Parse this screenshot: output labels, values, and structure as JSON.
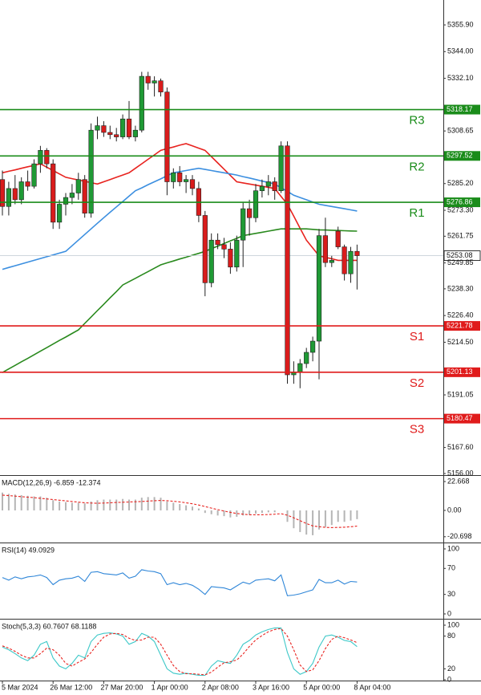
{
  "chart_data": [
    {
      "type": "candlestick",
      "categories": [
        "5 Mar 2024",
        null,
        null,
        null,
        null,
        null,
        null,
        null,
        "26 Mar 12:00",
        null,
        null,
        null,
        null,
        null,
        null,
        null,
        "27 Mar 20:00",
        null,
        null,
        null,
        null,
        null,
        null,
        null,
        "1 Apr 00:00",
        null,
        null,
        null,
        null,
        null,
        null,
        null,
        "2 Apr 08:00",
        null,
        null,
        null,
        null,
        null,
        null,
        null,
        "3 Apr 16:00",
        null,
        null,
        null,
        null,
        null,
        null,
        null,
        "5 Apr 00:00",
        null,
        null,
        null,
        null,
        null,
        null,
        null,
        "8 Apr 04:00"
      ],
      "open": [
        5287,
        5275,
        5283,
        5278,
        5286,
        5284,
        5294,
        5300,
        5294,
        5268,
        5276,
        5279,
        5281,
        5287,
        5272,
        5309,
        5311,
        5308,
        5307,
        5306,
        5314,
        5306,
        5309,
        5333,
        5330,
        5331,
        5326,
        5286,
        5290,
        5286,
        5287,
        5283,
        5271,
        5241,
        5260,
        5258,
        5256,
        5248,
        5260,
        5274,
        5270,
        5282,
        5284,
        5286,
        5282,
        5302,
        5200,
        5201,
        5205,
        5210,
        5215,
        5262,
        5250,
        5264,
        5257,
        5245,
        5255
      ],
      "high": [
        5291,
        5286,
        5289,
        5288,
        5291,
        5296,
        5302,
        5301,
        5296,
        5278,
        5281,
        5285,
        5290,
        5289,
        5312,
        5315,
        5313,
        5311,
        5310,
        5316,
        5322,
        5311,
        5335,
        5335,
        5333,
        5332,
        5328,
        5292,
        5293,
        5289,
        5289,
        5286,
        5273,
        5263,
        5263,
        5261,
        5259,
        5262,
        5277,
        5278,
        5285,
        5287,
        5289,
        5288,
        5304,
        5304,
        5206,
        5207,
        5212,
        5217,
        5265,
        5270,
        5253,
        5266,
        5258,
        5257,
        5258
      ],
      "low": [
        5271,
        5271,
        5276,
        5276,
        5282,
        5283,
        5290,
        5292,
        5265,
        5265,
        5271,
        5276,
        5278,
        5270,
        5270,
        5305,
        5306,
        5305,
        5304,
        5305,
        5305,
        5304,
        5308,
        5327,
        5324,
        5324,
        5280,
        5283,
        5284,
        5281,
        5280,
        5268,
        5235,
        5239,
        5256,
        5252,
        5245,
        5246,
        5248,
        5262,
        5268,
        5279,
        5280,
        5278,
        5281,
        5196,
        5196,
        5194,
        5203,
        5206,
        5198,
        5248,
        5248,
        5256,
        5242,
        5241,
        5238
      ],
      "close": [
        5275,
        5283,
        5278,
        5286,
        5284,
        5294,
        5300,
        5294,
        5268,
        5276,
        5279,
        5281,
        5287,
        5272,
        5309,
        5311,
        5308,
        5307,
        5306,
        5314,
        5306,
        5309,
        5333,
        5330,
        5331,
        5326,
        5286,
        5290,
        5286,
        5287,
        5283,
        5271,
        5241,
        5260,
        5258,
        5256,
        5248,
        5260,
        5274,
        5270,
        5282,
        5284,
        5286,
        5282,
        5302,
        5200,
        5201,
        5205,
        5210,
        5215,
        5262,
        5250,
        5251,
        5257,
        5245,
        5255,
        5253.08
      ],
      "up_color": "#1f9a35",
      "down_color": "#d91c1c",
      "moving_averages": [
        {
          "color": "#e8231f",
          "values": [
            5290,
            5290.7,
            5291.3,
            5292,
            5292.7,
            5293.3,
            5294,
            5292.5,
            5291,
            5289.5,
            5288,
            5287.4,
            5286.8,
            5286.2,
            5285.6,
            5285,
            5286,
            5287,
            5288,
            5289,
            5290,
            5292,
            5294,
            5296,
            5298,
            5300,
            5300.8,
            5301.5,
            5302.3,
            5303,
            5302,
            5301,
            5300,
            5297.2,
            5294.4,
            5291.6,
            5288.8,
            5286,
            5285.5,
            5285,
            5284.5,
            5284,
            5283.5,
            5283,
            5279.5,
            5276,
            5270.7,
            5265.3,
            5260,
            5256.5,
            5253,
            5252.3,
            5251.7,
            5251,
            5251,
            5251,
            5251
          ]
        },
        {
          "color": "#3c8fe0",
          "values": [
            5247,
            5247.8,
            5248.6,
            5249.4,
            5250.2,
            5251,
            5251.8,
            5252.6,
            5253.4,
            5254.2,
            5255,
            5257.5,
            5260,
            5262.5,
            5265,
            5267.5,
            5270,
            5272.4,
            5274.8,
            5277.2,
            5279.6,
            5282,
            5283.3,
            5284.7,
            5286,
            5287.3,
            5288.7,
            5290,
            5290.5,
            5291,
            5291.5,
            5292,
            5291.5,
            5291,
            5290.5,
            5290,
            5289.5,
            5289,
            5288.3,
            5287.7,
            5287,
            5286.3,
            5285.7,
            5285,
            5283.3,
            5281.7,
            5280,
            5279,
            5278,
            5277,
            5276,
            5275.5,
            5275,
            5274.5,
            5274,
            5273.5,
            5273
          ]
        },
        {
          "color": "#2a8a1e",
          "values": [
            5201,
            5202.6,
            5204.2,
            5205.8,
            5207.3,
            5208.9,
            5210.5,
            5212.1,
            5213.7,
            5215.3,
            5216.8,
            5218.4,
            5220,
            5222.9,
            5225.7,
            5228.6,
            5231.4,
            5234.3,
            5237.1,
            5240,
            5241.5,
            5243,
            5244.5,
            5246,
            5247.5,
            5249,
            5249.9,
            5250.7,
            5251.6,
            5252.4,
            5253.3,
            5254.1,
            5255,
            5256.2,
            5257.3,
            5258.5,
            5259.7,
            5260.8,
            5262,
            5262.5,
            5263,
            5263.5,
            5264,
            5264.5,
            5265,
            5265,
            5265,
            5265,
            5265,
            5264.8,
            5264.6,
            5264.5,
            5264.4,
            5264.3,
            5264.2,
            5264.1,
            5264
          ]
        }
      ],
      "levels": [
        {
          "label": "R3",
          "value": 5318.17,
          "color": "#1a8c1a"
        },
        {
          "label": "R2",
          "value": 5297.52,
          "color": "#1a8c1a"
        },
        {
          "label": "R1",
          "value": 5276.86,
          "color": "#1a8c1a"
        },
        {
          "label": "S1",
          "value": 5221.78,
          "color": "#e01b1b"
        },
        {
          "label": "S2",
          "value": 5201.13,
          "color": "#e01b1b"
        },
        {
          "label": "S3",
          "value": 5180.47,
          "color": "#e01b1b"
        }
      ],
      "last_price": 5253.08,
      "ylim": [
        5155.3,
        5367.0
      ],
      "yticks": [
        {
          "value": 5355.9,
          "label": "5355.90"
        },
        {
          "value": 5344,
          "label": "5344.00"
        },
        {
          "value": 5332.1,
          "label": "5332.10"
        },
        5308.65,
        {
          "value": 5285.2,
          "label": "5285.20"
        },
        {
          "value": 5273.3,
          "label": "5273.30"
        },
        5261.75,
        5249.85,
        {
          "value": 5238.3,
          "label": "5238.30"
        },
        {
          "value": 5226.4,
          "label": "5226.40"
        },
        {
          "value": 5214.5,
          "label": "5214.50"
        },
        5191.05,
        {
          "value": 5167.6,
          "label": "5167.60"
        },
        {
          "value": 5156,
          "label": "5156.00"
        }
      ]
    },
    {
      "type": "macd",
      "title": "MACD(12,26,9) -6.859 -12.374",
      "values": [
        14,
        13,
        12.5,
        12,
        11.5,
        11,
        11,
        10,
        8,
        7,
        6.5,
        6,
        6,
        5.5,
        7,
        8,
        8.5,
        8.5,
        8.5,
        9,
        8.5,
        8.5,
        10,
        10.5,
        10.5,
        10,
        7,
        6,
        5,
        4,
        3,
        1.5,
        -2,
        -3,
        -4,
        -4.5,
        -5.5,
        -5,
        -4,
        -3.5,
        -2.5,
        -2,
        -1.5,
        -1.5,
        0,
        -9,
        -14,
        -17,
        -19,
        -19.5,
        -15,
        -13,
        -11.5,
        -9,
        -9,
        -8,
        -6.859
      ],
      "signal": [
        12,
        11.6,
        11.2,
        10.8,
        10.4,
        10,
        9.5,
        9,
        8.5,
        8,
        7.5,
        7,
        6.5,
        6,
        5.8,
        5.6,
        5.8,
        6,
        6.2,
        6.4,
        6.6,
        6.8,
        7,
        7.3,
        7.6,
        7.8,
        7.6,
        7.2,
        6.7,
        6,
        5.2,
        4.2,
        3,
        1.8,
        0.6,
        -0.5,
        -1.5,
        -2.4,
        -3,
        -3.4,
        -3.5,
        -3.4,
        -3.2,
        -3,
        -2.6,
        -3.8,
        -5.8,
        -8.1,
        -10.3,
        -12.2,
        -12.8,
        -13.3,
        -13.5,
        -13.4,
        -13.2,
        -12.8,
        -12.374
      ],
      "color": "#b5b5b5",
      "signal_color": "#e8231f",
      "ylim": [
        -24.6,
        27.1
      ],
      "yticks": [
        22.668,
        {
          "value": 0,
          "label": "0.00"
        },
        -20.698
      ]
    },
    {
      "type": "line",
      "title": "RSI(14) 49.0929",
      "series": [
        {
          "color": "#2f86d8",
          "dashed": false,
          "values": [
            56,
            52,
            57,
            54,
            57,
            58,
            60,
            56,
            45,
            52,
            54,
            55,
            58,
            50,
            64,
            65,
            62,
            61,
            60,
            63,
            55,
            58,
            68,
            66,
            65,
            62,
            45,
            48,
            45,
            47,
            44,
            38,
            30,
            42,
            41,
            40,
            37,
            43,
            49,
            46,
            52,
            53,
            54,
            51,
            60,
            28,
            29,
            31,
            34,
            37,
            53,
            48,
            48,
            52,
            46,
            50,
            49.0929
          ]
        }
      ],
      "ylim": [
        -6.2,
        108.6
      ],
      "yticks": [
        100,
        70,
        30,
        0
      ]
    },
    {
      "type": "line",
      "title": "Stoch(5,3,3) 60.7607 68.1188",
      "series": [
        {
          "color": "#3cc8c8",
          "dashed": false,
          "values": [
            60,
            55,
            48,
            40,
            35,
            45,
            65,
            70,
            40,
            25,
            20,
            30,
            45,
            40,
            70,
            82,
            85,
            86,
            84,
            80,
            65,
            70,
            85,
            80,
            70,
            45,
            20,
            12,
            10,
            12,
            10,
            8,
            8,
            25,
            35,
            32,
            30,
            45,
            65,
            72,
            82,
            88,
            92,
            95,
            95,
            50,
            20,
            10,
            15,
            30,
            60,
            80,
            82,
            78,
            72,
            70,
            60.7607
          ]
        },
        {
          "color": "#e8231f",
          "dashed": true,
          "values": [
            62,
            58,
            52,
            45,
            40,
            40,
            48,
            58,
            55,
            45,
            30,
            25,
            32,
            38,
            50,
            65,
            78,
            84,
            85,
            83,
            76,
            72,
            73,
            78,
            78,
            65,
            45,
            26,
            15,
            11,
            11,
            10,
            9,
            14,
            23,
            31,
            33,
            36,
            47,
            61,
            73,
            81,
            88,
            92,
            94,
            80,
            55,
            27,
            15,
            18,
            35,
            57,
            74,
            80,
            77,
            73,
            68.1188
          ]
        }
      ],
      "ylim": [
        -1.5,
        110.3
      ],
      "yticks": [
        100,
        80,
        20,
        0
      ]
    }
  ]
}
